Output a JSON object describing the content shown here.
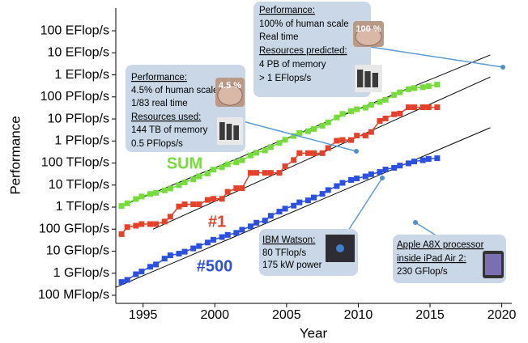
{
  "chart_data": {
    "type": "line",
    "y_axis_label": "Performance",
    "x_axis_label": "Year",
    "log_y": true,
    "xlim": [
      1993.1,
      2020.7
    ],
    "xticks": [
      1995,
      2000,
      2005,
      2010,
      2015,
      2020
    ],
    "ylim": [
      0.043,
      1070000000000
    ],
    "yticks": [
      {
        "value": 0.1,
        "label": "100 MFlop/s"
      },
      {
        "value": 1,
        "label": "1 GFlop/s"
      },
      {
        "value": 10,
        "label": "10 GFlop/s"
      },
      {
        "value": 100,
        "label": "100 GFlop/s"
      },
      {
        "value": 1000,
        "label": "1 TFlop/s"
      },
      {
        "value": 10000,
        "label": "10 TFlop/s"
      },
      {
        "value": 100000,
        "label": "100 TFlop/s"
      },
      {
        "value": 1000000,
        "label": "1 PFlop/s"
      },
      {
        "value": 10000000,
        "label": "10 PFlop/s"
      },
      {
        "value": 100000000,
        "label": "100 PFlop/s"
      },
      {
        "value": 1000000000,
        "label": "1 EFlop/s"
      },
      {
        "value": 10000000000,
        "label": "10 EFlop/s"
      },
      {
        "value": 100000000000,
        "label": "100 EFlop/s"
      }
    ],
    "x": [
      1993.5,
      1993.9,
      1994.5,
      1994.9,
      1995.5,
      1995.9,
      1996.5,
      1996.9,
      1997.5,
      1997.9,
      1998.5,
      1998.9,
      1999.5,
      1999.9,
      2000.5,
      2000.9,
      2001.5,
      2001.9,
      2002.5,
      2002.9,
      2003.5,
      2003.9,
      2004.5,
      2004.9,
      2005.5,
      2005.9,
      2006.5,
      2006.9,
      2007.5,
      2007.9,
      2008.5,
      2008.9,
      2009.5,
      2009.9,
      2010.5,
      2010.9,
      2011.5,
      2011.9,
      2012.5,
      2012.9,
      2013.5,
      2013.9,
      2014.5,
      2014.9,
      2015.5
    ],
    "series": [
      {
        "name": "SUM",
        "color": "#76dc3c",
        "values": [
          1128,
          1493,
          2317,
          3041,
          3943,
          4485,
          5744,
          7044,
          9885,
          13300,
          18170,
          24900,
          33600,
          50000,
          64000,
          88000,
          108000,
          134000,
          222000,
          293000,
          375000,
          528000,
          813000,
          1127000,
          1690000,
          2300000,
          2790000,
          3530000,
          4920000,
          6970000,
          11700000,
          16950000,
          22600000,
          27600000,
          32400000,
          44200000,
          58900000,
          74200000,
          123000000,
          162000000,
          223000000,
          250000000,
          274000000,
          309000000,
          363000000
        ]
      },
      {
        "name": "#1",
        "color": "#e5402a",
        "values": [
          59.7,
          124,
          143.4,
          170,
          170,
          170,
          220.4,
          368.2,
          1068,
          1338,
          1338,
          1338,
          2121,
          2379,
          2379,
          4938,
          7226,
          7226,
          35860,
          35860,
          35860,
          35860,
          35860,
          70720,
          136800,
          280600,
          280600,
          280600,
          280600,
          478200,
          1026000,
          1105000,
          1105000,
          1759000,
          1759000,
          2566000,
          8162000,
          10510000,
          16320000,
          17590000,
          33860000,
          33860000,
          33860000,
          33860000,
          33860000
        ]
      },
      {
        "name": "#500",
        "color": "#2b4fe0",
        "values": [
          0.4,
          0.5,
          0.9,
          1.2,
          1.96,
          2.5,
          4.6,
          6.5,
          7.7,
          9.5,
          13.4,
          17.1,
          24.7,
          33.1,
          43.8,
          55.1,
          67.8,
          94.3,
          134,
          196,
          245,
          403,
          625,
          851,
          1166,
          1646,
          2026,
          2737,
          4005,
          5929,
          9000,
          12640,
          17090,
          20050,
          24670,
          31120,
          39100,
          50900,
          60800,
          76500,
          96600,
          117800,
          133700,
          153400,
          164700
        ]
      }
    ],
    "trend_lines": [
      {
        "x": [
          1993.3,
          2019.2
        ],
        "values": [
          1000,
          8000000000
        ],
        "color": "#000000"
      },
      {
        "x": [
          1995.7,
          2019.2
        ],
        "values": [
          100,
          800000000
        ],
        "color": "#000000"
      },
      {
        "x": [
          1993.1,
          2019.2
        ],
        "values": [
          0.23,
          4000000
        ],
        "color": "#000000"
      }
    ],
    "annotations": [
      {
        "badge": "100 %",
        "lines": [
          "Performance:",
          "100% of human scale",
          "Real time",
          "Resources predicted:",
          "4 PB of memory",
          "> 1 EFlops/s"
        ]
      },
      {
        "badge": "4.5 %",
        "lines": [
          "Performance:",
          "4.5% of human scale",
          "1/83 real time",
          "Resources used:",
          "144 TB of memory",
          "0.5 PFlops/s"
        ]
      },
      {
        "lines": [
          "IBM Watson:",
          "80 TFlop/s",
          "175 kW power"
        ]
      },
      {
        "lines": [
          "Apple A8X processor",
          "inside iPad Air 2:",
          "230 GFlop/s"
        ]
      }
    ]
  }
}
